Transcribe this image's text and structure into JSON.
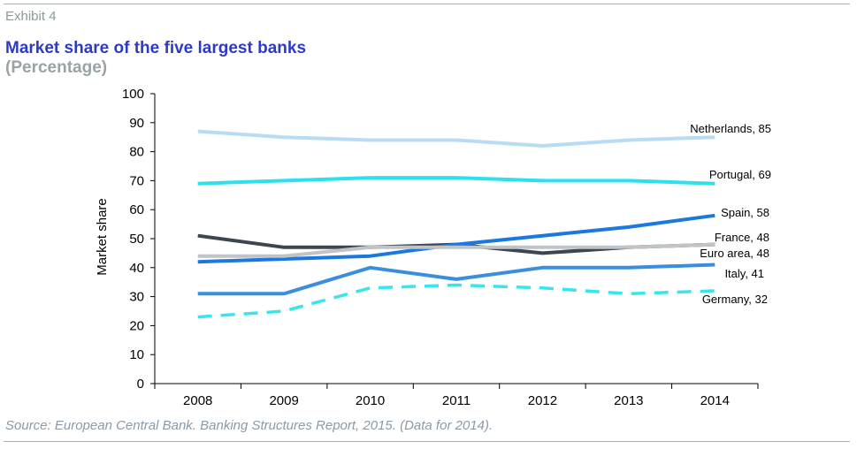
{
  "header": {
    "exhibit": "Exhibit 4",
    "title": "Market share of the five largest banks",
    "subtitle": "(Percentage)"
  },
  "footer": {
    "source": "Source: European Central Bank. Banking Structures Report, 2015. (Data for 2014)."
  },
  "chart_data": {
    "type": "line",
    "title": "Market share of the five largest banks",
    "subtitle": "(Percentage)",
    "xlabel": "",
    "ylabel": "Market  share",
    "ylim": [
      0,
      100
    ],
    "yticks": [
      0,
      10,
      20,
      30,
      40,
      50,
      60,
      70,
      80,
      90,
      100
    ],
    "categories": [
      "2008",
      "2009",
      "2010",
      "2011",
      "2012",
      "2013",
      "2014"
    ],
    "grid": false,
    "legend": "inline end labels",
    "series": [
      {
        "name": "Netherlands",
        "label": "Netherlands, 85",
        "color": "#b8dcf4",
        "dash": false,
        "values": [
          87,
          85,
          84,
          84,
          82,
          84,
          85
        ]
      },
      {
        "name": "Portugal",
        "label": "Portugal, 69",
        "color": "#2de0f0",
        "dash": false,
        "values": [
          69,
          70,
          71,
          71,
          70,
          70,
          69
        ]
      },
      {
        "name": "France",
        "label": "France, 48",
        "color": "#3b4650",
        "dash": false,
        "values": [
          51,
          47,
          47,
          48,
          45,
          47,
          48
        ]
      },
      {
        "name": "Spain",
        "label": "Spain, 58",
        "color": "#1a78e0",
        "dash": false,
        "values": [
          42,
          43,
          44,
          48,
          51,
          54,
          58
        ]
      },
      {
        "name": "Euro area",
        "label": "Euro area, 48",
        "color": "#c0c4c6",
        "dash": false,
        "values": [
          44,
          44,
          47,
          47,
          47,
          47,
          48
        ]
      },
      {
        "name": "Italy",
        "label": "Italy, 41",
        "color": "#3a8ee0",
        "dash": false,
        "values": [
          31,
          31,
          40,
          36,
          40,
          40,
          41
        ]
      },
      {
        "name": "Germany",
        "label": "Germany, 32",
        "color": "#36e6ec",
        "dash": true,
        "values": [
          23,
          25,
          33,
          34,
          33,
          31,
          32
        ]
      }
    ]
  }
}
